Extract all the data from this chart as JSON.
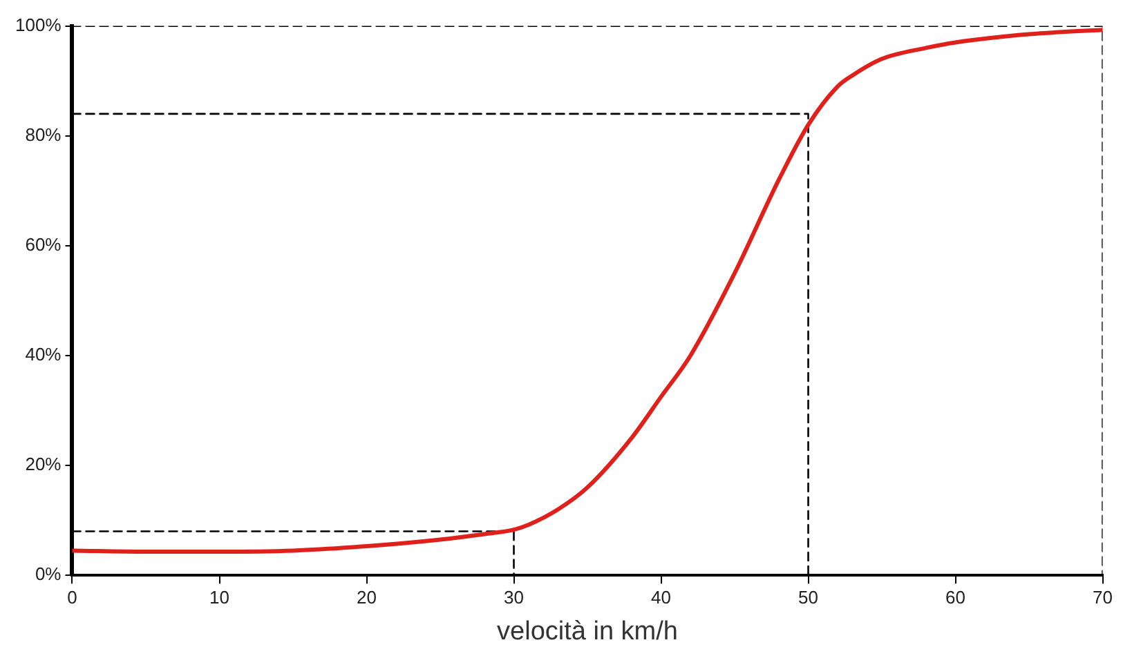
{
  "chart_data": {
    "type": "line",
    "xlabel": "velocità in km/h",
    "xlim": [
      0,
      70
    ],
    "xticks": [
      0,
      10,
      20,
      30,
      40,
      50,
      60,
      70
    ],
    "ylim": [
      0,
      100
    ],
    "yticks": [
      {
        "value": 0,
        "label": "0%"
      },
      {
        "value": 20,
        "label": "20%"
      },
      {
        "value": 40,
        "label": "40%"
      },
      {
        "value": 60,
        "label": "60%"
      },
      {
        "value": 80,
        "label": "80%"
      },
      {
        "value": 100,
        "label": "100%"
      }
    ],
    "grid": false,
    "legend": false,
    "marker": "none",
    "series": [
      {
        "color": "#e0201b",
        "line_style": "solid",
        "x": [
          0,
          5,
          10,
          15,
          20,
          25,
          28,
          30,
          31,
          33,
          35,
          38,
          40,
          42,
          45,
          48,
          50,
          52,
          53,
          55,
          58,
          60,
          65,
          70
        ],
        "values": [
          4.5,
          4.3,
          4.3,
          4.5,
          5.3,
          6.5,
          7.5,
          8.3,
          9.2,
          12,
          16,
          25,
          32.5,
          40,
          55,
          72,
          82,
          89,
          91,
          94,
          96,
          97,
          98.5,
          99.3
        ]
      },
      {
        "color": "#000000",
        "line_style": "dashed",
        "x": [
          0,
          30,
          30
        ],
        "values": [
          8,
          8,
          0
        ]
      },
      {
        "color": "#000000",
        "line_style": "dashed",
        "x": [
          0,
          50,
          50
        ],
        "values": [
          84,
          84,
          0
        ]
      },
      {
        "color": "#000000",
        "line_style": "dashed",
        "x": [
          0,
          70,
          70
        ],
        "values": [
          100,
          100,
          0
        ]
      }
    ]
  }
}
